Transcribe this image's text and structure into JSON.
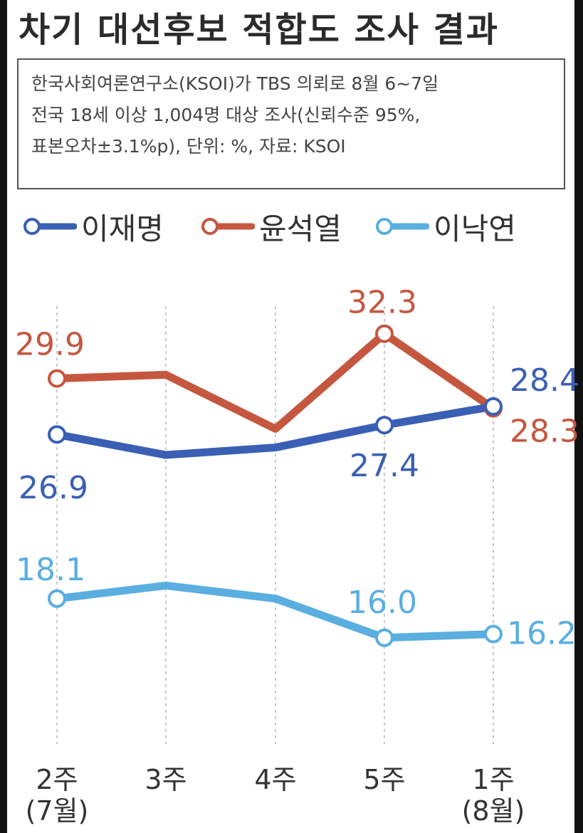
{
  "title": "차기 대선후보 적합도 조사 결과",
  "source_lines": [
    "한국사회여론연구소(KSOI)가 TBS 의뢰로 8월 6~7일",
    "전국 18세 이상 1,004명 대상 조사(신뢰수준 95%,",
    "표본오차±3.1%p), 단위: %, 자료: KSOI"
  ],
  "colors": {
    "이재명": "#3a5fb4",
    "윤석열": "#c5573f",
    "이낙연": "#5aaee0",
    "grid": "#c8c8c8",
    "tick_text": "#333333"
  },
  "chart_data": {
    "type": "line",
    "categories": [
      [
        "2주",
        "(7월)"
      ],
      [
        "3주"
      ],
      [
        "4주"
      ],
      [
        "5주"
      ],
      [
        "1주",
        "(8월)"
      ]
    ],
    "series": [
      {
        "name": "이재명",
        "values": [
          26.9,
          25.8,
          26.2,
          27.4,
          28.4
        ],
        "labels": [
          "26.9",
          "",
          "",
          "27.4",
          "28.4"
        ],
        "markers": [
          true,
          false,
          false,
          true,
          true
        ]
      },
      {
        "name": "윤석열",
        "values": [
          29.9,
          30.1,
          27.2,
          32.3,
          28.3
        ],
        "labels": [
          "29.9",
          "",
          "",
          "32.3",
          "28.3"
        ],
        "markers": [
          true,
          false,
          false,
          true,
          true
        ]
      },
      {
        "name": "이낙연",
        "values": [
          18.1,
          18.8,
          18.1,
          16.0,
          16.2
        ],
        "labels": [
          "18.1",
          "",
          "",
          "16.0",
          "16.2"
        ],
        "markers": [
          true,
          false,
          false,
          true,
          true
        ]
      }
    ],
    "legend_position": "top-left",
    "grid": "vertical-dashed"
  }
}
